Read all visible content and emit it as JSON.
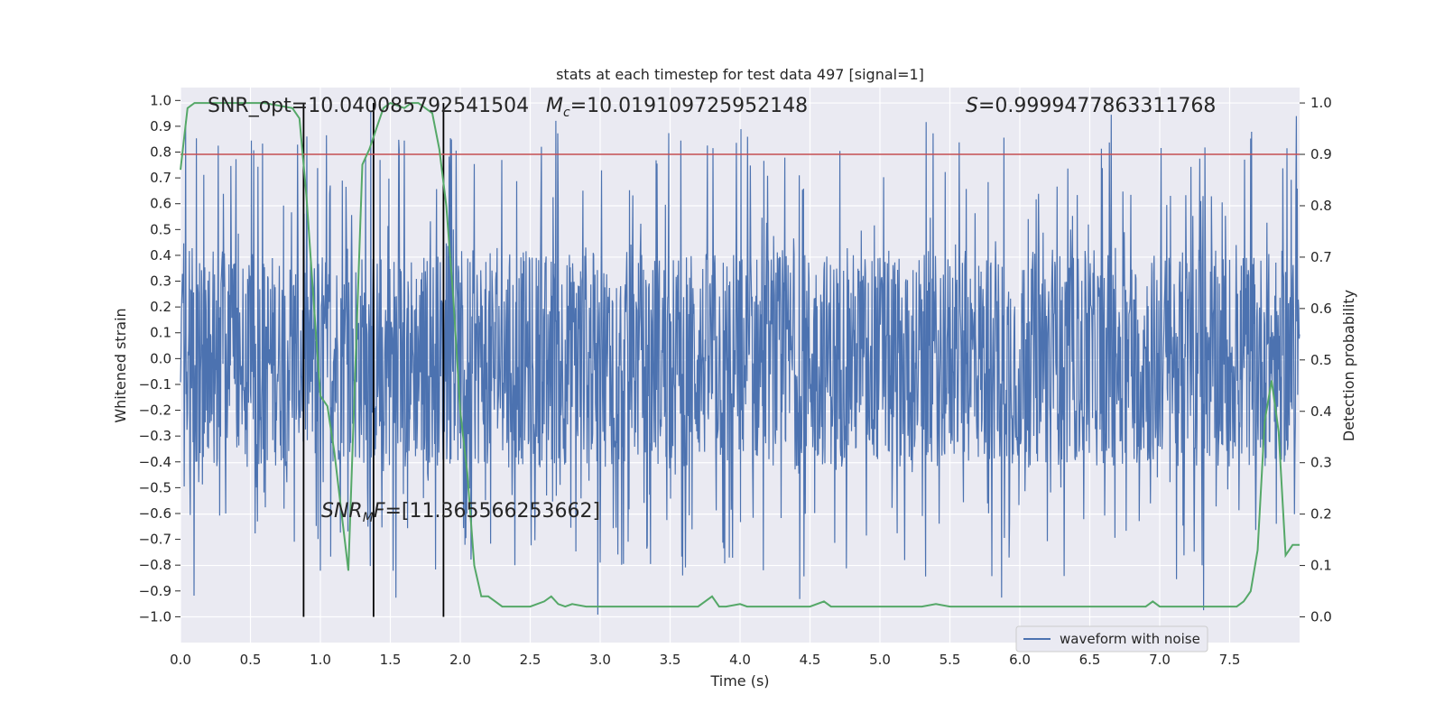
{
  "chart_data": {
    "type": "line",
    "title": "stats at each timestep for test data 497 [signal=1]",
    "xlabel": "Time (s)",
    "ylabel": "Whitened strain",
    "ylabel_right": "Detection probability",
    "xlim": [
      0.0,
      8.0
    ],
    "ylim": [
      -1.1,
      1.05
    ],
    "ylim_right": [
      -0.05,
      1.03
    ],
    "x_ticks": [
      0.0,
      0.5,
      1.0,
      1.5,
      2.0,
      2.5,
      3.0,
      3.5,
      4.0,
      4.5,
      5.0,
      5.5,
      6.0,
      6.5,
      7.0,
      7.5
    ],
    "x_tick_labels": [
      "0.0",
      "0.5",
      "1.0",
      "1.5",
      "2.0",
      "2.5",
      "3.0",
      "3.5",
      "4.0",
      "4.5",
      "5.0",
      "5.5",
      "6.0",
      "6.5",
      "7.0",
      "7.5"
    ],
    "y_ticks": [
      1.0,
      0.9,
      0.8,
      0.7,
      0.6,
      0.5,
      0.4,
      0.3,
      0.2,
      0.1,
      0.0,
      -0.1,
      -0.2,
      -0.3,
      -0.4,
      -0.5,
      -0.6,
      -0.7,
      -0.8,
      -0.9,
      -1.0
    ],
    "y_tick_labels": [
      "1.0",
      "0.9",
      "0.8",
      "0.7",
      "0.6",
      "0.5",
      "0.4",
      "0.3",
      "0.2",
      "0.1",
      "0.0",
      "−0.1",
      "−0.2",
      "−0.3",
      "−0.4",
      "−0.5",
      "−0.6",
      "−0.7",
      "−0.8",
      "−0.9",
      "−1.0"
    ],
    "y_right_ticks": [
      1.0,
      0.9,
      0.8,
      0.7,
      0.6,
      0.5,
      0.4,
      0.3,
      0.2,
      0.1,
      0.0
    ],
    "y_right_tick_labels": [
      "1.0",
      "0.9",
      "0.8",
      "0.7",
      "0.6",
      "0.5",
      "0.4",
      "0.3",
      "0.2",
      "0.1",
      "0.0"
    ],
    "threshold": 0.9,
    "event_times": [
      0.88,
      1.38,
      1.88
    ],
    "waveform": {
      "name": "waveform with noise",
      "duration": 8.0,
      "typical_range": [
        -0.42,
        0.42
      ],
      "peak_max": 0.96,
      "peak_min": -1.0
    },
    "probability": {
      "x": [
        0.0,
        0.05,
        0.1,
        0.2,
        0.4,
        0.6,
        0.8,
        0.85,
        0.9,
        0.95,
        1.0,
        1.05,
        1.1,
        1.2,
        1.3,
        1.35,
        1.4,
        1.45,
        1.5,
        1.6,
        1.65,
        1.7,
        1.8,
        1.85,
        1.9,
        1.95,
        2.0,
        2.05,
        2.1,
        2.15,
        2.2,
        2.3,
        2.4,
        2.5,
        2.6,
        2.65,
        2.7,
        2.75,
        2.8,
        2.9,
        3.0,
        3.1,
        3.2,
        3.3,
        3.5,
        3.7,
        3.8,
        3.85,
        3.9,
        4.0,
        4.05,
        4.1,
        4.2,
        4.3,
        4.4,
        4.5,
        4.6,
        4.65,
        4.7,
        4.8,
        5.0,
        5.2,
        5.3,
        5.4,
        5.5,
        5.6,
        5.8,
        6.0,
        6.5,
        6.9,
        6.95,
        7.0,
        7.1,
        7.2,
        7.3,
        7.4,
        7.5,
        7.55,
        7.6,
        7.65,
        7.7,
        7.75,
        7.8,
        7.85,
        7.9,
        7.95,
        8.0
      ],
      "y": [
        0.87,
        0.99,
        1.0,
        1.0,
        1.0,
        1.0,
        0.99,
        0.97,
        0.82,
        0.62,
        0.43,
        0.41,
        0.32,
        0.09,
        0.88,
        0.91,
        0.95,
        0.99,
        1.0,
        0.99,
        1.0,
        1.0,
        0.98,
        0.91,
        0.8,
        0.62,
        0.4,
        0.28,
        0.1,
        0.04,
        0.04,
        0.02,
        0.02,
        0.02,
        0.03,
        0.04,
        0.025,
        0.02,
        0.025,
        0.02,
        0.02,
        0.02,
        0.02,
        0.02,
        0.02,
        0.02,
        0.04,
        0.02,
        0.02,
        0.025,
        0.02,
        0.02,
        0.02,
        0.02,
        0.02,
        0.02,
        0.03,
        0.02,
        0.02,
        0.02,
        0.02,
        0.02,
        0.02,
        0.025,
        0.02,
        0.02,
        0.02,
        0.02,
        0.02,
        0.02,
        0.03,
        0.02,
        0.02,
        0.02,
        0.02,
        0.02,
        0.02,
        0.02,
        0.03,
        0.05,
        0.13,
        0.38,
        0.46,
        0.36,
        0.12,
        0.14,
        0.14
      ]
    },
    "annotations": {
      "snr_opt": "SNR_opt=10.040085792541504",
      "mc_sym": "M",
      "mc_sub": "c",
      "mc_val": "=10.019109725952148",
      "s_sym": "S",
      "s_val": "=0.9999477863311768",
      "snrmf_sym": "SNR",
      "snrmf_sub": "M",
      "snrmf_sym2": "F",
      "snrmf_val": "=[11.365566253662]"
    },
    "legend": {
      "label": "waveform with noise",
      "position": "lower-right"
    },
    "colors": {
      "background": "#eaeaf2",
      "grid": "#ffffff",
      "waveform": "#4c72b0",
      "probability": "#55a868",
      "threshold": "#c44e52",
      "event_line": "#000000"
    }
  }
}
